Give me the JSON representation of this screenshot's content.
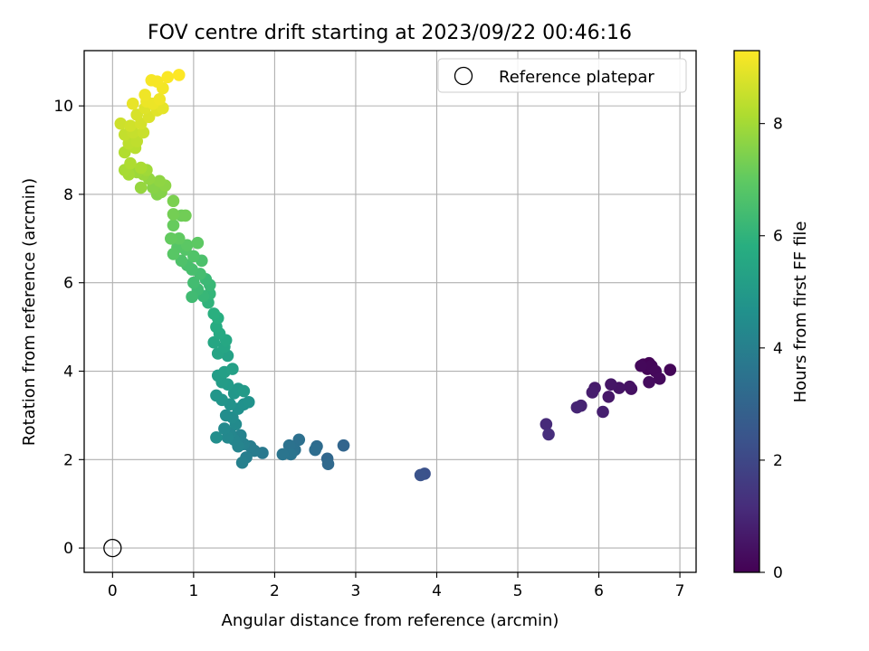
{
  "chart_data": {
    "type": "scatter",
    "title": "FOV centre drift starting at 2023/09/22 00:46:16",
    "xlabel": "Angular distance from reference (arcmin)",
    "ylabel": "Rotation from reference (arcmin)",
    "xlim": [
      -0.35,
      7.2
    ],
    "ylim": [
      -0.55,
      11.25
    ],
    "xticks": [
      "0",
      "1",
      "2",
      "3",
      "4",
      "5",
      "6",
      "7"
    ],
    "yticks": [
      "0",
      "2",
      "4",
      "6",
      "8",
      "10"
    ],
    "grid": true,
    "legend": {
      "position": "top-right",
      "entries": [
        "Reference platepar"
      ]
    },
    "reference_point": {
      "name": "Reference platepar",
      "x": 0,
      "y": 0
    },
    "colorbar": {
      "label": "Hours from first FF file",
      "range": [
        0,
        9.3
      ],
      "ticks": [
        "0",
        "2",
        "4",
        "6",
        "8"
      ],
      "colormap": "viridis"
    },
    "points": [
      {
        "x": 6.55,
        "y": 4.15,
        "t": 0.05
      },
      {
        "x": 6.62,
        "y": 4.18,
        "t": 0.08
      },
      {
        "x": 6.6,
        "y": 4.05,
        "t": 0.1
      },
      {
        "x": 6.88,
        "y": 4.03,
        "t": 0.12
      },
      {
        "x": 6.65,
        "y": 4.12,
        "t": 0.15
      },
      {
        "x": 6.52,
        "y": 4.12,
        "t": 0.18
      },
      {
        "x": 6.7,
        "y": 4.0,
        "t": 0.2
      },
      {
        "x": 6.75,
        "y": 3.83,
        "t": 0.25
      },
      {
        "x": 6.62,
        "y": 3.75,
        "t": 0.3
      },
      {
        "x": 6.4,
        "y": 3.6,
        "t": 0.4
      },
      {
        "x": 6.38,
        "y": 3.65,
        "t": 0.45
      },
      {
        "x": 6.25,
        "y": 3.62,
        "t": 0.5
      },
      {
        "x": 6.15,
        "y": 3.7,
        "t": 0.55
      },
      {
        "x": 6.12,
        "y": 3.42,
        "t": 0.6
      },
      {
        "x": 5.95,
        "y": 3.62,
        "t": 0.7
      },
      {
        "x": 5.92,
        "y": 3.52,
        "t": 0.75
      },
      {
        "x": 6.05,
        "y": 3.08,
        "t": 0.8
      },
      {
        "x": 5.78,
        "y": 3.22,
        "t": 0.9
      },
      {
        "x": 5.73,
        "y": 3.18,
        "t": 0.95
      },
      {
        "x": 5.35,
        "y": 2.8,
        "t": 1.1
      },
      {
        "x": 5.38,
        "y": 2.57,
        "t": 1.2
      },
      {
        "x": 3.85,
        "y": 1.68,
        "t": 2.3
      },
      {
        "x": 3.8,
        "y": 1.65,
        "t": 2.35
      },
      {
        "x": 2.85,
        "y": 2.32,
        "t": 3.0
      },
      {
        "x": 2.65,
        "y": 2.02,
        "t": 3.1
      },
      {
        "x": 2.66,
        "y": 1.9,
        "t": 3.15
      },
      {
        "x": 2.52,
        "y": 2.3,
        "t": 3.25
      },
      {
        "x": 2.5,
        "y": 2.22,
        "t": 3.3
      },
      {
        "x": 2.3,
        "y": 2.45,
        "t": 3.4
      },
      {
        "x": 2.25,
        "y": 2.22,
        "t": 3.45
      },
      {
        "x": 2.18,
        "y": 2.32,
        "t": 3.5
      },
      {
        "x": 2.2,
        "y": 2.12,
        "t": 3.55
      },
      {
        "x": 2.1,
        "y": 2.12,
        "t": 3.6
      },
      {
        "x": 1.85,
        "y": 2.15,
        "t": 3.75
      },
      {
        "x": 1.75,
        "y": 2.2,
        "t": 3.85
      },
      {
        "x": 1.7,
        "y": 2.3,
        "t": 3.9
      },
      {
        "x": 1.65,
        "y": 2.05,
        "t": 3.95
      },
      {
        "x": 1.6,
        "y": 1.93,
        "t": 4.0
      },
      {
        "x": 1.62,
        "y": 2.35,
        "t": 4.05
      },
      {
        "x": 1.58,
        "y": 2.55,
        "t": 4.1
      },
      {
        "x": 1.55,
        "y": 2.3,
        "t": 4.15
      },
      {
        "x": 1.5,
        "y": 2.45,
        "t": 4.2
      },
      {
        "x": 1.45,
        "y": 2.6,
        "t": 4.25
      },
      {
        "x": 1.42,
        "y": 2.5,
        "t": 4.3
      },
      {
        "x": 1.38,
        "y": 2.7,
        "t": 4.35
      },
      {
        "x": 1.52,
        "y": 2.8,
        "t": 4.4
      },
      {
        "x": 1.48,
        "y": 2.95,
        "t": 4.45
      },
      {
        "x": 1.4,
        "y": 3.0,
        "t": 4.5
      },
      {
        "x": 1.28,
        "y": 2.5,
        "t": 4.55
      },
      {
        "x": 1.55,
        "y": 3.15,
        "t": 4.6
      },
      {
        "x": 1.62,
        "y": 3.25,
        "t": 4.65
      },
      {
        "x": 1.68,
        "y": 3.3,
        "t": 4.7
      },
      {
        "x": 1.45,
        "y": 3.25,
        "t": 4.75
      },
      {
        "x": 1.35,
        "y": 3.35,
        "t": 4.8
      },
      {
        "x": 1.28,
        "y": 3.45,
        "t": 4.85
      },
      {
        "x": 1.5,
        "y": 3.5,
        "t": 4.9
      },
      {
        "x": 1.55,
        "y": 3.6,
        "t": 4.95
      },
      {
        "x": 1.62,
        "y": 3.55,
        "t": 5.0
      },
      {
        "x": 1.42,
        "y": 3.7,
        "t": 5.05
      },
      {
        "x": 1.35,
        "y": 3.75,
        "t": 5.1
      },
      {
        "x": 1.3,
        "y": 3.9,
        "t": 5.15
      },
      {
        "x": 1.38,
        "y": 3.98,
        "t": 5.2
      },
      {
        "x": 1.48,
        "y": 4.05,
        "t": 5.25
      },
      {
        "x": 1.42,
        "y": 4.35,
        "t": 5.3
      },
      {
        "x": 1.3,
        "y": 4.4,
        "t": 5.4
      },
      {
        "x": 1.38,
        "y": 4.55,
        "t": 5.45
      },
      {
        "x": 1.25,
        "y": 4.65,
        "t": 5.5
      },
      {
        "x": 1.4,
        "y": 4.7,
        "t": 5.55
      },
      {
        "x": 1.32,
        "y": 4.85,
        "t": 5.6
      },
      {
        "x": 1.28,
        "y": 5.0,
        "t": 5.7
      },
      {
        "x": 1.3,
        "y": 5.2,
        "t": 5.8
      },
      {
        "x": 1.25,
        "y": 5.3,
        "t": 5.85
      },
      {
        "x": 1.18,
        "y": 5.55,
        "t": 6.0
      },
      {
        "x": 1.2,
        "y": 5.75,
        "t": 6.1
      },
      {
        "x": 1.12,
        "y": 5.7,
        "t": 6.15
      },
      {
        "x": 1.2,
        "y": 5.95,
        "t": 6.2
      },
      {
        "x": 1.15,
        "y": 6.08,
        "t": 6.25
      },
      {
        "x": 1.05,
        "y": 5.85,
        "t": 6.3
      },
      {
        "x": 0.98,
        "y": 5.68,
        "t": 6.35
      },
      {
        "x": 1.0,
        "y": 6.0,
        "t": 6.4
      },
      {
        "x": 1.08,
        "y": 6.2,
        "t": 6.45
      },
      {
        "x": 0.98,
        "y": 6.3,
        "t": 6.5
      },
      {
        "x": 0.92,
        "y": 6.4,
        "t": 6.55
      },
      {
        "x": 1.1,
        "y": 6.5,
        "t": 6.6
      },
      {
        "x": 0.85,
        "y": 6.5,
        "t": 6.65
      },
      {
        "x": 1.0,
        "y": 6.6,
        "t": 6.7
      },
      {
        "x": 0.9,
        "y": 6.75,
        "t": 6.75
      },
      {
        "x": 0.8,
        "y": 6.8,
        "t": 6.8
      },
      {
        "x": 0.75,
        "y": 6.65,
        "t": 6.85
      },
      {
        "x": 0.92,
        "y": 6.85,
        "t": 6.9
      },
      {
        "x": 1.05,
        "y": 6.9,
        "t": 6.95
      },
      {
        "x": 0.82,
        "y": 7.0,
        "t": 7.0
      },
      {
        "x": 0.72,
        "y": 7.0,
        "t": 7.05
      },
      {
        "x": 0.75,
        "y": 7.3,
        "t": 7.1
      },
      {
        "x": 0.85,
        "y": 7.52,
        "t": 7.2
      },
      {
        "x": 0.9,
        "y": 7.52,
        "t": 7.25
      },
      {
        "x": 0.75,
        "y": 7.55,
        "t": 7.3
      },
      {
        "x": 0.75,
        "y": 7.85,
        "t": 7.4
      },
      {
        "x": 0.55,
        "y": 8.0,
        "t": 7.5
      },
      {
        "x": 0.6,
        "y": 8.05,
        "t": 7.55
      },
      {
        "x": 0.5,
        "y": 8.15,
        "t": 7.6
      },
      {
        "x": 0.65,
        "y": 8.2,
        "t": 7.65
      },
      {
        "x": 0.58,
        "y": 8.3,
        "t": 7.7
      },
      {
        "x": 0.45,
        "y": 8.35,
        "t": 7.75
      },
      {
        "x": 0.35,
        "y": 8.15,
        "t": 7.8
      },
      {
        "x": 0.38,
        "y": 8.45,
        "t": 7.85
      },
      {
        "x": 0.3,
        "y": 8.5,
        "t": 7.9
      },
      {
        "x": 0.42,
        "y": 8.55,
        "t": 7.95
      },
      {
        "x": 0.2,
        "y": 8.45,
        "t": 8.0
      },
      {
        "x": 0.15,
        "y": 8.55,
        "t": 8.05
      },
      {
        "x": 0.35,
        "y": 8.6,
        "t": 8.1
      },
      {
        "x": 0.22,
        "y": 8.7,
        "t": 8.15
      },
      {
        "x": 0.15,
        "y": 8.95,
        "t": 8.2
      },
      {
        "x": 0.28,
        "y": 9.05,
        "t": 8.3
      },
      {
        "x": 0.2,
        "y": 9.15,
        "t": 8.35
      },
      {
        "x": 0.3,
        "y": 9.2,
        "t": 8.4
      },
      {
        "x": 0.15,
        "y": 9.35,
        "t": 8.45
      },
      {
        "x": 0.25,
        "y": 9.4,
        "t": 8.5
      },
      {
        "x": 0.38,
        "y": 9.4,
        "t": 8.55
      },
      {
        "x": 0.1,
        "y": 9.6,
        "t": 8.6
      },
      {
        "x": 0.22,
        "y": 9.55,
        "t": 8.65
      },
      {
        "x": 0.35,
        "y": 9.6,
        "t": 8.7
      },
      {
        "x": 0.3,
        "y": 9.8,
        "t": 8.75
      },
      {
        "x": 0.45,
        "y": 9.75,
        "t": 8.8
      },
      {
        "x": 0.4,
        "y": 9.95,
        "t": 8.85
      },
      {
        "x": 0.55,
        "y": 9.9,
        "t": 8.9
      },
      {
        "x": 0.62,
        "y": 9.95,
        "t": 8.95
      },
      {
        "x": 0.25,
        "y": 10.05,
        "t": 9.0
      },
      {
        "x": 0.42,
        "y": 10.1,
        "t": 9.05
      },
      {
        "x": 0.5,
        "y": 10.05,
        "t": 9.05
      },
      {
        "x": 0.58,
        "y": 10.15,
        "t": 9.1
      },
      {
        "x": 0.4,
        "y": 10.25,
        "t": 9.1
      },
      {
        "x": 0.62,
        "y": 10.4,
        "t": 9.15
      },
      {
        "x": 0.55,
        "y": 10.55,
        "t": 9.2
      },
      {
        "x": 0.48,
        "y": 10.58,
        "t": 9.2
      },
      {
        "x": 0.68,
        "y": 10.65,
        "t": 9.25
      },
      {
        "x": 0.82,
        "y": 10.7,
        "t": 9.3
      }
    ]
  }
}
